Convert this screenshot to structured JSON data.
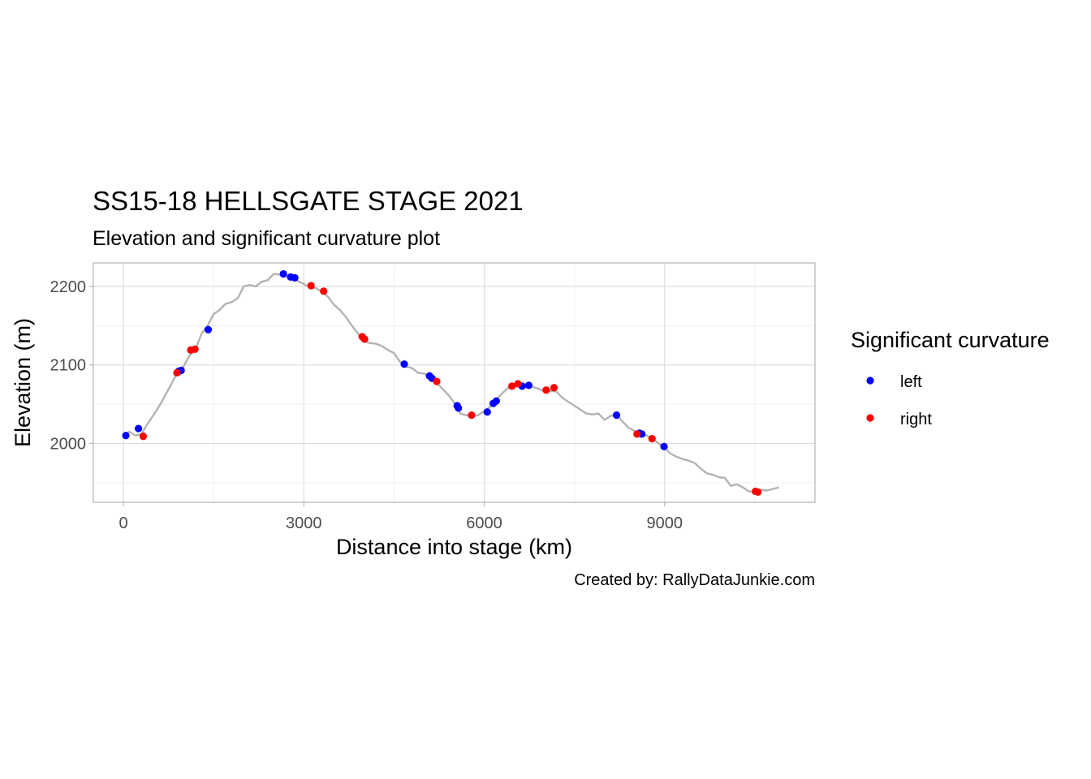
{
  "chart_data": {
    "type": "scatter",
    "title": "SS15-18 HELLSGATE STAGE 2021",
    "subtitle": "Elevation and significant curvature plot",
    "xlabel": "Distance into stage (km)",
    "ylabel": "Elevation (m)",
    "caption": "Created by: RallyDataJunkie.com",
    "xlim": [
      -500,
      11500
    ],
    "ylim": [
      1925,
      2230
    ],
    "x_ticks": [
      0,
      3000,
      6000,
      9000
    ],
    "x_tick_labels": [
      "0",
      "3000",
      "6000",
      "9000"
    ],
    "y_ticks": [
      2000,
      2100,
      2200
    ],
    "y_tick_labels": [
      "2000",
      "2100",
      "2200"
    ],
    "grid": true,
    "legend": {
      "title": "Significant curvature",
      "position": "right",
      "entries": [
        {
          "label": "left",
          "color": "#0000ff"
        },
        {
          "label": "right",
          "color": "#ff0000"
        }
      ]
    },
    "elevation_profile": {
      "color": "#b3b3b3",
      "x": [
        0,
        100,
        200,
        300,
        400,
        500,
        600,
        700,
        800,
        900,
        1000,
        1100,
        1200,
        1300,
        1400,
        1500,
        1600,
        1700,
        1800,
        1900,
        2000,
        2100,
        2200,
        2300,
        2400,
        2500,
        2600,
        2700,
        2800,
        2900,
        3000,
        3100,
        3200,
        3300,
        3400,
        3500,
        3600,
        3700,
        3800,
        3900,
        4000,
        4100,
        4200,
        4300,
        4400,
        4500,
        4600,
        4700,
        4800,
        4900,
        5000,
        5100,
        5200,
        5300,
        5400,
        5500,
        5600,
        5700,
        5800,
        5900,
        6000,
        6100,
        6200,
        6300,
        6400,
        6500,
        6600,
        6700,
        6800,
        6900,
        7000,
        7100,
        7200,
        7300,
        7400,
        7500,
        7600,
        7700,
        7800,
        7900,
        8000,
        8100,
        8200,
        8300,
        8400,
        8500,
        8600,
        8700,
        8800,
        8900,
        9000,
        9100,
        9200,
        9300,
        9400,
        9500,
        9600,
        9700,
        9800,
        9900,
        10000,
        10100,
        10200,
        10300,
        10400,
        10500,
        10600,
        10700,
        10800,
        10900
      ],
      "y": [
        2010,
        2015,
        2010,
        2012,
        2025,
        2036,
        2048,
        2062,
        2076,
        2091,
        2098,
        2112,
        2120,
        2140,
        2150,
        2165,
        2170,
        2178,
        2180,
        2185,
        2200,
        2202,
        2200,
        2206,
        2208,
        2216,
        2215,
        2213,
        2210,
        2207,
        2203,
        2199,
        2198,
        2193,
        2187,
        2177,
        2170,
        2161,
        2150,
        2140,
        2130,
        2128,
        2127,
        2124,
        2119,
        2115,
        2104,
        2098,
        2096,
        2090,
        2089,
        2084,
        2078,
        2070,
        2062,
        2052,
        2038,
        2036,
        2034,
        2036,
        2041,
        2047,
        2056,
        2064,
        2071,
        2073,
        2074,
        2073,
        2072,
        2070,
        2066,
        2067,
        2066,
        2058,
        2053,
        2048,
        2043,
        2038,
        2037,
        2038,
        2030,
        2035,
        2036,
        2028,
        2020,
        2016,
        2012,
        2010,
        2006,
        2000,
        1994,
        1987,
        1983,
        1980,
        1978,
        1975,
        1968,
        1962,
        1960,
        1957,
        1956,
        1946,
        1948,
        1944,
        1939,
        1938,
        1941,
        1940,
        1942,
        1944
      ]
    },
    "series": [
      {
        "name": "left",
        "color": "#0000ff",
        "points": [
          {
            "x": 40,
            "y": 2010
          },
          {
            "x": 250,
            "y": 2019
          },
          {
            "x": 920,
            "y": 2092
          },
          {
            "x": 960,
            "y": 2093
          },
          {
            "x": 1410,
            "y": 2145
          },
          {
            "x": 2660,
            "y": 2216
          },
          {
            "x": 2780,
            "y": 2212
          },
          {
            "x": 2850,
            "y": 2211
          },
          {
            "x": 4670,
            "y": 2101
          },
          {
            "x": 5090,
            "y": 2086
          },
          {
            "x": 5130,
            "y": 2083
          },
          {
            "x": 5550,
            "y": 2048
          },
          {
            "x": 5570,
            "y": 2045
          },
          {
            "x": 6050,
            "y": 2040
          },
          {
            "x": 6150,
            "y": 2051
          },
          {
            "x": 6200,
            "y": 2054
          },
          {
            "x": 6630,
            "y": 2073
          },
          {
            "x": 6740,
            "y": 2074
          },
          {
            "x": 8200,
            "y": 2036
          },
          {
            "x": 8580,
            "y": 2013
          },
          {
            "x": 8620,
            "y": 2012
          },
          {
            "x": 8990,
            "y": 1996
          }
        ]
      },
      {
        "name": "right",
        "color": "#ff0000",
        "points": [
          {
            "x": 330,
            "y": 2009
          },
          {
            "x": 890,
            "y": 2090
          },
          {
            "x": 1120,
            "y": 2119
          },
          {
            "x": 1190,
            "y": 2120
          },
          {
            "x": 3120,
            "y": 2201
          },
          {
            "x": 3330,
            "y": 2194
          },
          {
            "x": 3970,
            "y": 2136
          },
          {
            "x": 4010,
            "y": 2133
          },
          {
            "x": 5210,
            "y": 2079
          },
          {
            "x": 5790,
            "y": 2036
          },
          {
            "x": 6460,
            "y": 2073
          },
          {
            "x": 6560,
            "y": 2076
          },
          {
            "x": 7030,
            "y": 2068
          },
          {
            "x": 7160,
            "y": 2071
          },
          {
            "x": 8540,
            "y": 2012
          },
          {
            "x": 8790,
            "y": 2006
          },
          {
            "x": 10510,
            "y": 1939
          },
          {
            "x": 10550,
            "y": 1938
          }
        ]
      }
    ]
  }
}
